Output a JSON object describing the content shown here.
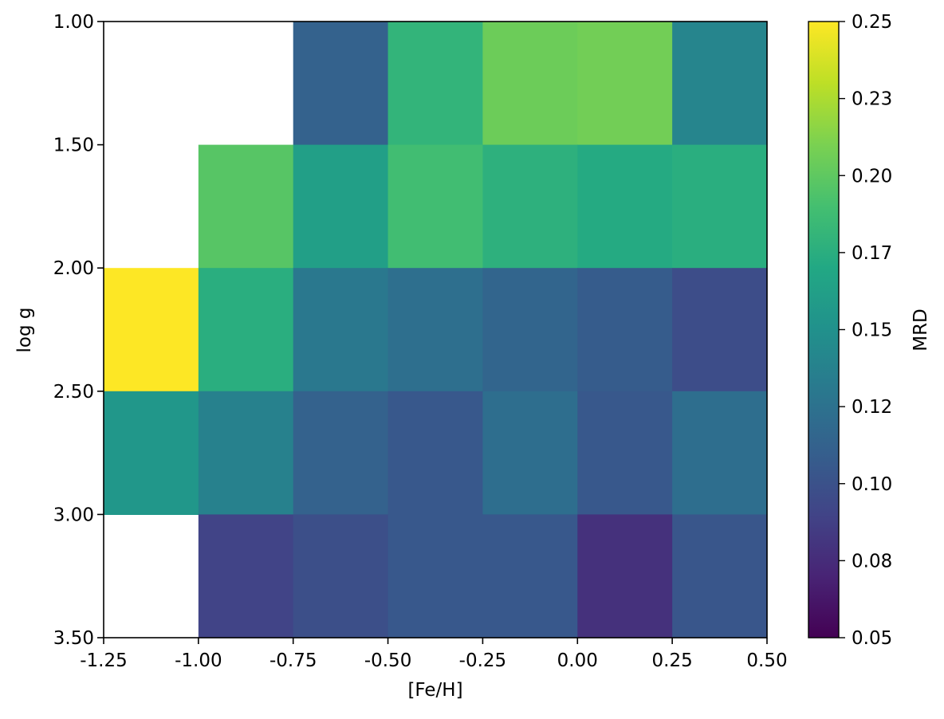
{
  "chart_data": {
    "type": "heatmap",
    "xlabel": "[Fe/H]",
    "ylabel": "log g",
    "colorbar_label": "MRD",
    "xlim": [
      -1.25,
      0.5
    ],
    "ylim": [
      1.0,
      3.5
    ],
    "y_inverted": true,
    "x_ticks": [
      "-1.25",
      "-1.00",
      "-0.75",
      "-0.50",
      "-0.25",
      "0.00",
      "0.25",
      "0.50"
    ],
    "y_ticks": [
      "1.00",
      "1.50",
      "2.00",
      "2.50",
      "3.00",
      "3.50"
    ],
    "x_bins": [
      -1.25,
      -1.0,
      -0.75,
      -0.5,
      -0.25,
      0.0,
      0.25,
      0.5
    ],
    "y_bins": [
      1.0,
      1.5,
      2.0,
      2.5,
      3.0,
      3.5
    ],
    "colormap": "viridis",
    "color_range": [
      0.05,
      0.25
    ],
    "colorbar_ticks": [
      "0.05",
      "0.08",
      "0.10",
      "0.12",
      "0.15",
      "0.17",
      "0.20",
      "0.23",
      "0.25"
    ],
    "values": [
      [
        null,
        null,
        0.112,
        0.18,
        0.205,
        0.207,
        0.14
      ],
      [
        null,
        0.197,
        0.162,
        0.188,
        0.177,
        0.172,
        0.175
      ],
      [
        0.25,
        0.175,
        0.13,
        0.123,
        0.115,
        0.108,
        0.097
      ],
      [
        0.155,
        0.137,
        0.112,
        0.105,
        0.122,
        0.105,
        0.122
      ],
      [
        null,
        0.09,
        0.098,
        0.105,
        0.105,
        0.078,
        0.103
      ]
    ]
  }
}
